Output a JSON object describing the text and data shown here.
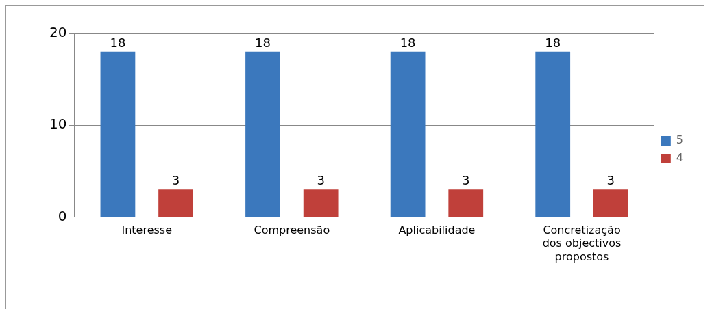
{
  "chart_data": {
    "type": "bar",
    "categories": [
      "Interesse",
      "Compreensão",
      "Aplicabilidade",
      "Concretização dos objectivos propostos"
    ],
    "series": [
      {
        "name": "5",
        "color": "#3b78bd",
        "values": [
          18,
          18,
          18,
          18
        ]
      },
      {
        "name": "4",
        "color": "#c0403a",
        "values": [
          3,
          3,
          3,
          3
        ]
      }
    ],
    "ylim": [
      0,
      20
    ],
    "yticks": [
      0,
      10,
      20
    ],
    "grid": "y",
    "legend": "right",
    "data_labels": true
  }
}
